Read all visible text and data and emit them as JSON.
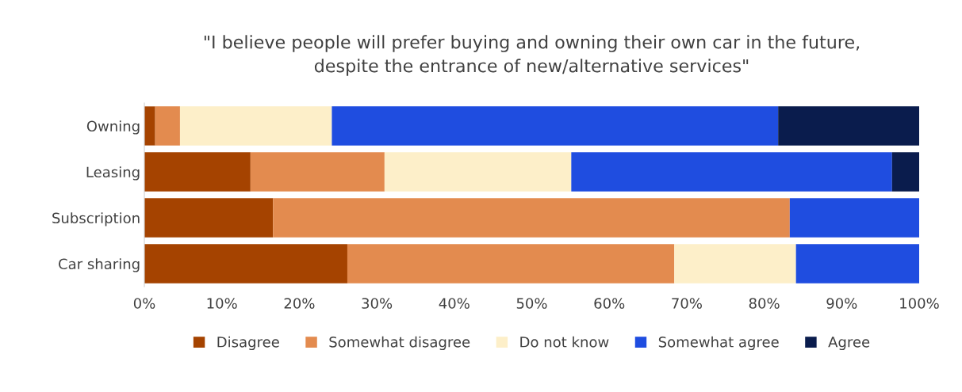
{
  "chart_data": {
    "type": "bar",
    "orientation": "horizontal",
    "stacked": true,
    "title": "\"I believe people will prefer buying and owning their own car in the future,\ndespite the entrance of new/alternative services\"",
    "categories": [
      "Owning",
      "Leasing",
      "Subscription",
      "Car sharing"
    ],
    "series": [
      {
        "name": "Disagree",
        "color": "#a54300",
        "values": [
          1.4,
          13.7,
          16.6,
          26.2
        ]
      },
      {
        "name": "Somewhat disagree",
        "color": "#e38b4f",
        "values": [
          3.2,
          17.3,
          66.7,
          42.2
        ]
      },
      {
        "name": "Do not know",
        "color": "#fdefc9",
        "values": [
          19.6,
          24.1,
          0,
          15.7
        ]
      },
      {
        "name": "Somewhat agree",
        "color": "#1f4de0",
        "values": [
          57.6,
          41.4,
          16.7,
          15.9
        ]
      },
      {
        "name": "Agree",
        "color": "#0a1c4d",
        "values": [
          18.2,
          3.5,
          0,
          0
        ]
      }
    ],
    "xlim": [
      0,
      100
    ],
    "xticks": [
      {
        "value": 0,
        "label": "0%"
      },
      {
        "value": 10,
        "label": "10%"
      },
      {
        "value": 20,
        "label": "20%"
      },
      {
        "value": 30,
        "label": "30%"
      },
      {
        "value": 40,
        "label": "40%"
      },
      {
        "value": 50,
        "label": "50%"
      },
      {
        "value": 60,
        "label": "60%"
      },
      {
        "value": 70,
        "label": "70%"
      },
      {
        "value": 80,
        "label": "80%"
      },
      {
        "value": 90,
        "label": "90%"
      },
      {
        "value": 100,
        "label": "100%"
      }
    ],
    "grid": false,
    "legend": "bottom"
  }
}
